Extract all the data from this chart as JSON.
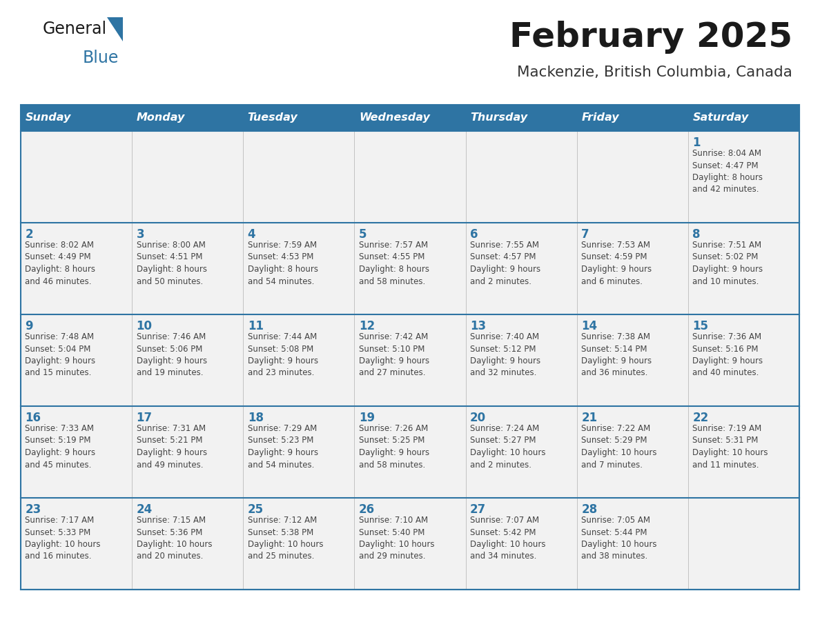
{
  "title": "February 2025",
  "subtitle": "Mackenzie, British Columbia, Canada",
  "days_of_week": [
    "Sunday",
    "Monday",
    "Tuesday",
    "Wednesday",
    "Thursday",
    "Friday",
    "Saturday"
  ],
  "header_bg": "#2E74A3",
  "header_text": "#FFFFFF",
  "cell_bg": "#F2F2F2",
  "divider_color": "#2E74A3",
  "day_number_color": "#2E74A3",
  "text_color": "#444444",
  "logo_text_color": "#1a1a1a",
  "logo_blue_color": "#2E74A3",
  "title_color": "#1a1a1a",
  "calendar_data": [
    [
      null,
      null,
      null,
      null,
      null,
      null,
      {
        "day": "1",
        "sunrise": "8:04 AM",
        "sunset": "4:47 PM",
        "daylight": "8 hours\nand 42 minutes."
      }
    ],
    [
      {
        "day": "2",
        "sunrise": "8:02 AM",
        "sunset": "4:49 PM",
        "daylight": "8 hours\nand 46 minutes."
      },
      {
        "day": "3",
        "sunrise": "8:00 AM",
        "sunset": "4:51 PM",
        "daylight": "8 hours\nand 50 minutes."
      },
      {
        "day": "4",
        "sunrise": "7:59 AM",
        "sunset": "4:53 PM",
        "daylight": "8 hours\nand 54 minutes."
      },
      {
        "day": "5",
        "sunrise": "7:57 AM",
        "sunset": "4:55 PM",
        "daylight": "8 hours\nand 58 minutes."
      },
      {
        "day": "6",
        "sunrise": "7:55 AM",
        "sunset": "4:57 PM",
        "daylight": "9 hours\nand 2 minutes."
      },
      {
        "day": "7",
        "sunrise": "7:53 AM",
        "sunset": "4:59 PM",
        "daylight": "9 hours\nand 6 minutes."
      },
      {
        "day": "8",
        "sunrise": "7:51 AM",
        "sunset": "5:02 PM",
        "daylight": "9 hours\nand 10 minutes."
      }
    ],
    [
      {
        "day": "9",
        "sunrise": "7:48 AM",
        "sunset": "5:04 PM",
        "daylight": "9 hours\nand 15 minutes."
      },
      {
        "day": "10",
        "sunrise": "7:46 AM",
        "sunset": "5:06 PM",
        "daylight": "9 hours\nand 19 minutes."
      },
      {
        "day": "11",
        "sunrise": "7:44 AM",
        "sunset": "5:08 PM",
        "daylight": "9 hours\nand 23 minutes."
      },
      {
        "day": "12",
        "sunrise": "7:42 AM",
        "sunset": "5:10 PM",
        "daylight": "9 hours\nand 27 minutes."
      },
      {
        "day": "13",
        "sunrise": "7:40 AM",
        "sunset": "5:12 PM",
        "daylight": "9 hours\nand 32 minutes."
      },
      {
        "day": "14",
        "sunrise": "7:38 AM",
        "sunset": "5:14 PM",
        "daylight": "9 hours\nand 36 minutes."
      },
      {
        "day": "15",
        "sunrise": "7:36 AM",
        "sunset": "5:16 PM",
        "daylight": "9 hours\nand 40 minutes."
      }
    ],
    [
      {
        "day": "16",
        "sunrise": "7:33 AM",
        "sunset": "5:19 PM",
        "daylight": "9 hours\nand 45 minutes."
      },
      {
        "day": "17",
        "sunrise": "7:31 AM",
        "sunset": "5:21 PM",
        "daylight": "9 hours\nand 49 minutes."
      },
      {
        "day": "18",
        "sunrise": "7:29 AM",
        "sunset": "5:23 PM",
        "daylight": "9 hours\nand 54 minutes."
      },
      {
        "day": "19",
        "sunrise": "7:26 AM",
        "sunset": "5:25 PM",
        "daylight": "9 hours\nand 58 minutes."
      },
      {
        "day": "20",
        "sunrise": "7:24 AM",
        "sunset": "5:27 PM",
        "daylight": "10 hours\nand 2 minutes."
      },
      {
        "day": "21",
        "sunrise": "7:22 AM",
        "sunset": "5:29 PM",
        "daylight": "10 hours\nand 7 minutes."
      },
      {
        "day": "22",
        "sunrise": "7:19 AM",
        "sunset": "5:31 PM",
        "daylight": "10 hours\nand 11 minutes."
      }
    ],
    [
      {
        "day": "23",
        "sunrise": "7:17 AM",
        "sunset": "5:33 PM",
        "daylight": "10 hours\nand 16 minutes."
      },
      {
        "day": "24",
        "sunrise": "7:15 AM",
        "sunset": "5:36 PM",
        "daylight": "10 hours\nand 20 minutes."
      },
      {
        "day": "25",
        "sunrise": "7:12 AM",
        "sunset": "5:38 PM",
        "daylight": "10 hours\nand 25 minutes."
      },
      {
        "day": "26",
        "sunrise": "7:10 AM",
        "sunset": "5:40 PM",
        "daylight": "10 hours\nand 29 minutes."
      },
      {
        "day": "27",
        "sunrise": "7:07 AM",
        "sunset": "5:42 PM",
        "daylight": "10 hours\nand 34 minutes."
      },
      {
        "day": "28",
        "sunrise": "7:05 AM",
        "sunset": "5:44 PM",
        "daylight": "10 hours\nand 38 minutes."
      },
      null
    ]
  ]
}
